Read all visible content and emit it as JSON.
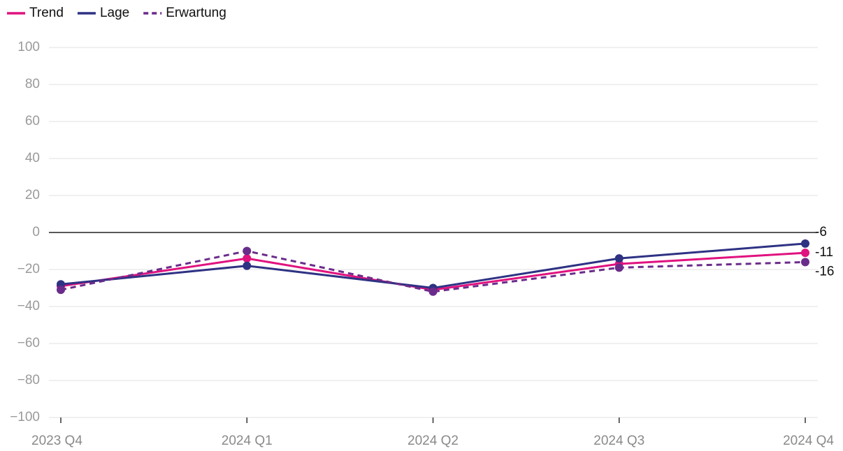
{
  "chart_data": {
    "type": "line",
    "categories": [
      "2023 Q4",
      "2024 Q1",
      "2024 Q2",
      "2024 Q3",
      "2024 Q4"
    ],
    "series": [
      {
        "name": "Trend",
        "color": "#e0127f",
        "dash": false,
        "values": [
          -29,
          -14,
          -31,
          -17,
          -11
        ]
      },
      {
        "name": "Lage",
        "color": "#2e3283",
        "dash": false,
        "values": [
          -28,
          -18,
          -30,
          -14,
          -6
        ]
      },
      {
        "name": "Erwartung",
        "color": "#6a2c8a",
        "dash": true,
        "values": [
          -31,
          -10,
          -32,
          -19,
          -16
        ]
      }
    ],
    "ylim": [
      -100,
      100
    ],
    "yticks": [
      {
        "value": -100,
        "label": "−100"
      },
      {
        "value": -80,
        "label": "−80"
      },
      {
        "value": -60,
        "label": "−60"
      },
      {
        "value": -40,
        "label": "−40"
      },
      {
        "value": -20,
        "label": "−20"
      },
      0,
      20,
      40,
      60,
      80,
      100
    ],
    "grid": true,
    "legend": "top-left",
    "end_labels": true
  }
}
